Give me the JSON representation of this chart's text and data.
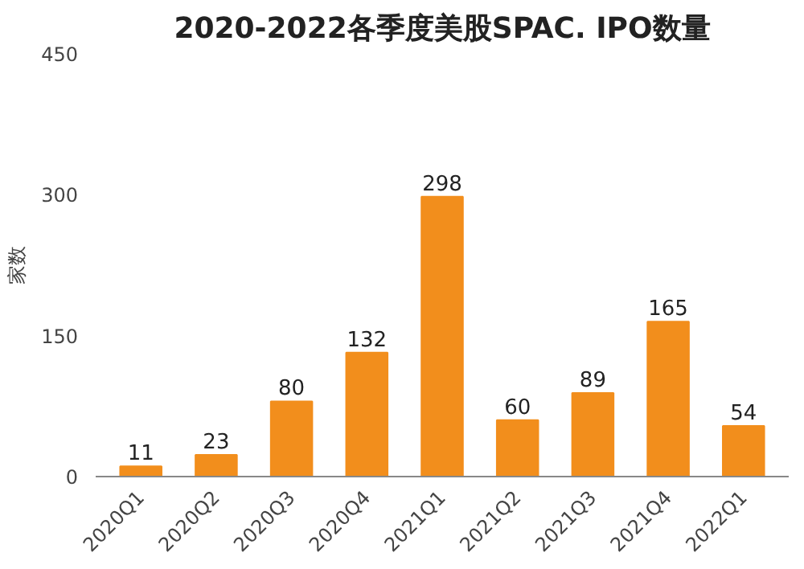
{
  "chart_data": {
    "type": "bar",
    "title": "2020-2022各季度美股SPAC. IPO数量",
    "ylabel": "家数",
    "categories": [
      "2020Q1",
      "2020Q2",
      "2020Q3",
      "2020Q4",
      "2021Q1",
      "2021Q2",
      "2021Q3",
      "2021Q4",
      "2022Q1"
    ],
    "values": [
      11,
      23,
      80,
      132,
      298,
      60,
      89,
      165,
      54
    ],
    "color": "#f28e1c",
    "ylim": [
      0,
      450
    ],
    "yticks": [
      0,
      150,
      300,
      450
    ],
    "grid": false,
    "data_labels": true
  }
}
